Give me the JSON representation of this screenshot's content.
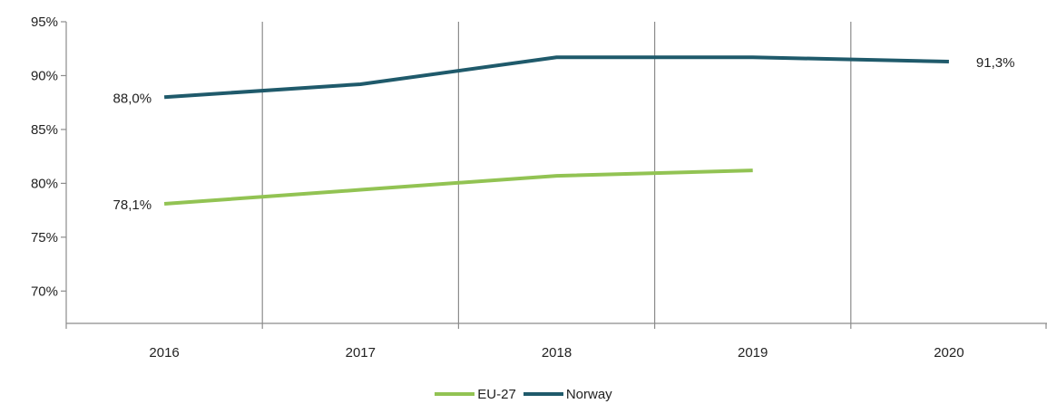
{
  "chart_data": {
    "type": "line",
    "title": "",
    "xlabel": "",
    "ylabel": "",
    "x": [
      "2016",
      "2017",
      "2018",
      "2019",
      "2020"
    ],
    "ylim": [
      67,
      95
    ],
    "yticks": [
      70,
      75,
      80,
      85,
      90,
      95
    ],
    "ytick_labels": [
      "70%",
      "75%",
      "80%",
      "85%",
      "90%",
      "95%"
    ],
    "grid": "vertical",
    "legend_position": "bottom",
    "series": [
      {
        "name": "EU-27",
        "color": "#92c353",
        "values": [
          78.1,
          79.4,
          80.7,
          81.2,
          null
        ],
        "labels": [
          {
            "index": 0,
            "text": "78,1%",
            "side": "left"
          }
        ]
      },
      {
        "name": "Norway",
        "color": "#1f5a6b",
        "values": [
          88.0,
          89.2,
          91.7,
          91.7,
          91.3
        ],
        "labels": [
          {
            "index": 0,
            "text": "88,0%",
            "side": "left"
          },
          {
            "index": 4,
            "text": "91,3%",
            "side": "right"
          }
        ]
      }
    ]
  }
}
